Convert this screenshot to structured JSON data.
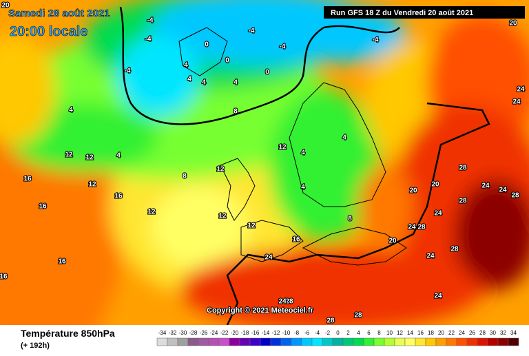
{
  "header": {
    "date": "Samedi 28 août 2021",
    "time": "20:00 locale",
    "run": "Run GFS 18 Z du Vendredi 20 août 2021"
  },
  "copyright": "Copyright © 2021 Meteociel.fr",
  "footer": {
    "title": "Température 850hPa",
    "lead": "(+ 192h)"
  },
  "scale": {
    "values": [
      -34,
      -32,
      -30,
      -28,
      -26,
      -24,
      -22,
      -20,
      -18,
      -16,
      -14,
      -12,
      -10,
      -8,
      -6,
      -4,
      -2,
      0,
      2,
      4,
      6,
      8,
      10,
      12,
      14,
      16,
      18,
      20,
      22,
      24,
      26,
      28,
      30,
      32,
      34
    ],
    "colors": [
      "#dcdcdc",
      "#c0c0c0",
      "#a0a0a0",
      "#8c5a8c",
      "#a05aa0",
      "#b450b4",
      "#c850c8",
      "#8c00a0",
      "#6400b4",
      "#3c00c8",
      "#0000c8",
      "#0032dc",
      "#0064f0",
      "#0096ff",
      "#00c8ff",
      "#00e6ff",
      "#00c8c8",
      "#00b4a0",
      "#00c878",
      "#00dc50",
      "#32f032",
      "#78ff32",
      "#b4ff32",
      "#e6ff50",
      "#ffff64",
      "#ffe632",
      "#ffc800",
      "#ffa000",
      "#ff7800",
      "#ff5000",
      "#f03000",
      "#dc1400",
      "#b40000",
      "#8c0000",
      "#500000"
    ]
  },
  "contour_labels": [
    20,
    20,
    -4,
    -4,
    -4,
    -4,
    -4,
    -4,
    0,
    0,
    0,
    4,
    4,
    4,
    4,
    4,
    4,
    4,
    4,
    4,
    12,
    12,
    12,
    12,
    12,
    12,
    12,
    12,
    16,
    16,
    16,
    16,
    16,
    8,
    8,
    8,
    16,
    24,
    20,
    20,
    20,
    24,
    24,
    28,
    28,
    28,
    28,
    24,
    24,
    24,
    28,
    24,
    28,
    28,
    28,
    24,
    24,
    24
  ]
}
